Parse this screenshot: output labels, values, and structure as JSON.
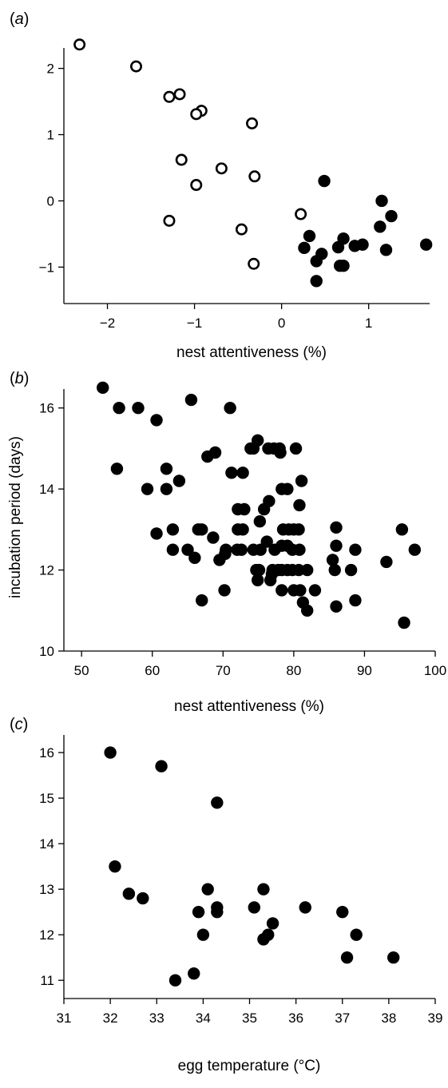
{
  "chart_data": [
    {
      "panel": "a",
      "panel_label": "a",
      "type": "scatter",
      "title": "",
      "xlabel": "nest attentiveness (%)",
      "ylabel": "",
      "xlim": [
        -2.5,
        1.7
      ],
      "ylim": [
        -1.55,
        2.55
      ],
      "xticks": [
        -2,
        -1,
        0,
        1
      ],
      "xtick_labels": [
        "−2",
        "−1",
        "0",
        "1"
      ],
      "yticks": [
        -1,
        0,
        1,
        2
      ],
      "ytick_labels": [
        "−1",
        "0",
        "1",
        "2"
      ],
      "grid": false,
      "legend": "none",
      "series": [
        {
          "marker": "open-circle",
          "points": [
            [
              -2.32,
              2.36
            ],
            [
              -1.67,
              2.03
            ],
            [
              -1.17,
              1.61
            ],
            [
              -1.29,
              1.57
            ],
            [
              -0.92,
              1.36
            ],
            [
              -0.98,
              1.31
            ],
            [
              -0.34,
              1.17
            ],
            [
              -1.15,
              0.62
            ],
            [
              -0.69,
              0.49
            ],
            [
              -0.98,
              0.24
            ],
            [
              -0.31,
              0.37
            ],
            [
              -1.29,
              -0.3
            ],
            [
              -0.46,
              -0.43
            ],
            [
              -0.32,
              -0.95
            ],
            [
              0.22,
              -0.2
            ]
          ]
        },
        {
          "marker": "filled-circle",
          "points": [
            [
              0.49,
              0.3
            ],
            [
              1.15,
              0.0
            ],
            [
              1.26,
              -0.23
            ],
            [
              1.13,
              -0.39
            ],
            [
              0.32,
              -0.53
            ],
            [
              0.71,
              -0.57
            ],
            [
              0.26,
              -0.71
            ],
            [
              0.65,
              -0.7
            ],
            [
              0.84,
              -0.68
            ],
            [
              0.93,
              -0.66
            ],
            [
              1.2,
              -0.74
            ],
            [
              1.66,
              -0.66
            ],
            [
              0.46,
              -0.8
            ],
            [
              0.4,
              -0.91
            ],
            [
              0.67,
              -0.98
            ],
            [
              0.71,
              -0.98
            ],
            [
              0.4,
              -1.21
            ]
          ]
        }
      ]
    },
    {
      "panel": "b",
      "panel_label": "b",
      "type": "scatter",
      "title": "",
      "xlabel": "nest attentiveness (%)",
      "ylabel": "incubation period (days)",
      "xlim": [
        47.5,
        100
      ],
      "ylim": [
        10,
        17
      ],
      "xticks": [
        50,
        60,
        70,
        80,
        90,
        100
      ],
      "xtick_labels": [
        "50",
        "60",
        "70",
        "80",
        "90",
        "100"
      ],
      "yticks": [
        10,
        12,
        14,
        16
      ],
      "ytick_labels": [
        "10",
        "12",
        "14",
        "16"
      ],
      "grid": false,
      "legend": "none",
      "series": [
        {
          "marker": "filled-circle",
          "points": [
            [
              53,
              16.5
            ],
            [
              55.3,
              16.0
            ],
            [
              58,
              16.0
            ],
            [
              65.5,
              16.2
            ],
            [
              60.6,
              15.7
            ],
            [
              71,
              16.0
            ],
            [
              55,
              14.5
            ],
            [
              59.3,
              14.0
            ],
            [
              62,
              14.5
            ],
            [
              62,
              14.0
            ],
            [
              63.8,
              14.2
            ],
            [
              67.8,
              14.8
            ],
            [
              68.9,
              14.9
            ],
            [
              71.2,
              14.4
            ],
            [
              72.8,
              14.4
            ],
            [
              73.9,
              15.0
            ],
            [
              74.3,
              15.0
            ],
            [
              74.9,
              15.2
            ],
            [
              76.4,
              15.0
            ],
            [
              77.2,
              15.0
            ],
            [
              78,
              15.0
            ],
            [
              78.1,
              14.9
            ],
            [
              80.3,
              15.0
            ],
            [
              78.3,
              14.0
            ],
            [
              79.1,
              14.0
            ],
            [
              81.1,
              14.2
            ],
            [
              76.5,
              13.7
            ],
            [
              80.8,
              13.6
            ],
            [
              72.1,
              13.5
            ],
            [
              73,
              13.5
            ],
            [
              75.8,
              13.5
            ],
            [
              60.6,
              12.9
            ],
            [
              62.9,
              13.0
            ],
            [
              66.5,
              13.0
            ],
            [
              67,
              13.0
            ],
            [
              68.6,
              12.8
            ],
            [
              72.1,
              13.0
            ],
            [
              72.8,
              13.0
            ],
            [
              75.2,
              13.2
            ],
            [
              78.5,
              13.0
            ],
            [
              79.3,
              13.0
            ],
            [
              80,
              13.0
            ],
            [
              80.7,
              13.0
            ],
            [
              62.9,
              12.5
            ],
            [
              65,
              12.5
            ],
            [
              66,
              12.3
            ],
            [
              69.5,
              12.25
            ],
            [
              70.3,
              12.4
            ],
            [
              70.4,
              12.5
            ],
            [
              72,
              12.5
            ],
            [
              72.6,
              12.5
            ],
            [
              74.3,
              12.5
            ],
            [
              75.3,
              12.5
            ],
            [
              76.2,
              12.7
            ],
            [
              77.3,
              12.5
            ],
            [
              78.3,
              12.6
            ],
            [
              79.1,
              12.6
            ],
            [
              79.8,
              12.5
            ],
            [
              80.8,
              12.5
            ],
            [
              74.7,
              12.0
            ],
            [
              75.1,
              12.0
            ],
            [
              76.9,
              11.9
            ],
            [
              77,
              12.0
            ],
            [
              77.8,
              12.0
            ],
            [
              78.3,
              12.0
            ],
            [
              79.1,
              12.0
            ],
            [
              79.8,
              12.0
            ],
            [
              80.7,
              12.0
            ],
            [
              81.9,
              12.0
            ],
            [
              85.5,
              12.25
            ],
            [
              85.8,
              12.0
            ],
            [
              86,
              12.6
            ],
            [
              86,
              13.05
            ],
            [
              88.1,
              12.0
            ],
            [
              88.7,
              12.5
            ],
            [
              93.1,
              12.2
            ],
            [
              95.3,
              13.0
            ],
            [
              97.1,
              12.5
            ],
            [
              67,
              11.25
            ],
            [
              70.2,
              11.5
            ],
            [
              74.9,
              11.75
            ],
            [
              76.7,
              11.75
            ],
            [
              78.3,
              11.5
            ],
            [
              80,
              11.5
            ],
            [
              80.9,
              11.5
            ],
            [
              81.3,
              11.2
            ],
            [
              81.9,
              11.0
            ],
            [
              83,
              11.5
            ],
            [
              86,
              11.1
            ],
            [
              88.7,
              11.25
            ],
            [
              95.6,
              10.7
            ]
          ]
        }
      ]
    },
    {
      "panel": "c",
      "panel_label": "c",
      "type": "scatter",
      "title": "",
      "xlabel": "egg temperature (°C)",
      "ylabel": "",
      "xlim": [
        31,
        39
      ],
      "ylim": [
        10.6,
        16.3
      ],
      "xticks": [
        31,
        32,
        33,
        34,
        35,
        36,
        37,
        38,
        39
      ],
      "xtick_labels": [
        "31",
        "32",
        "33",
        "34",
        "35",
        "36",
        "37",
        "38",
        "39"
      ],
      "yticks": [
        11,
        12,
        13,
        14,
        15,
        16
      ],
      "ytick_labels": [
        "11",
        "12",
        "13",
        "14",
        "15",
        "16"
      ],
      "grid": false,
      "legend": "none",
      "series": [
        {
          "marker": "filled-circle",
          "points": [
            [
              32,
              16.0
            ],
            [
              33.1,
              15.7
            ],
            [
              34.3,
              14.9
            ],
            [
              32.1,
              13.5
            ],
            [
              32.4,
              12.9
            ],
            [
              32.7,
              12.8
            ],
            [
              33.9,
              12.5
            ],
            [
              34,
              12.0
            ],
            [
              34.1,
              13.0
            ],
            [
              34.3,
              12.6
            ],
            [
              34.3,
              12.5
            ],
            [
              35.1,
              12.6
            ],
            [
              35.3,
              13.0
            ],
            [
              35.3,
              11.9
            ],
            [
              35.4,
              12.0
            ],
            [
              35.5,
              12.25
            ],
            [
              36.2,
              12.6
            ],
            [
              37,
              12.5
            ],
            [
              37.3,
              12.0
            ],
            [
              37.1,
              11.5
            ],
            [
              38.1,
              11.5
            ],
            [
              33.4,
              11.0
            ],
            [
              33.8,
              11.15
            ]
          ]
        }
      ]
    }
  ]
}
